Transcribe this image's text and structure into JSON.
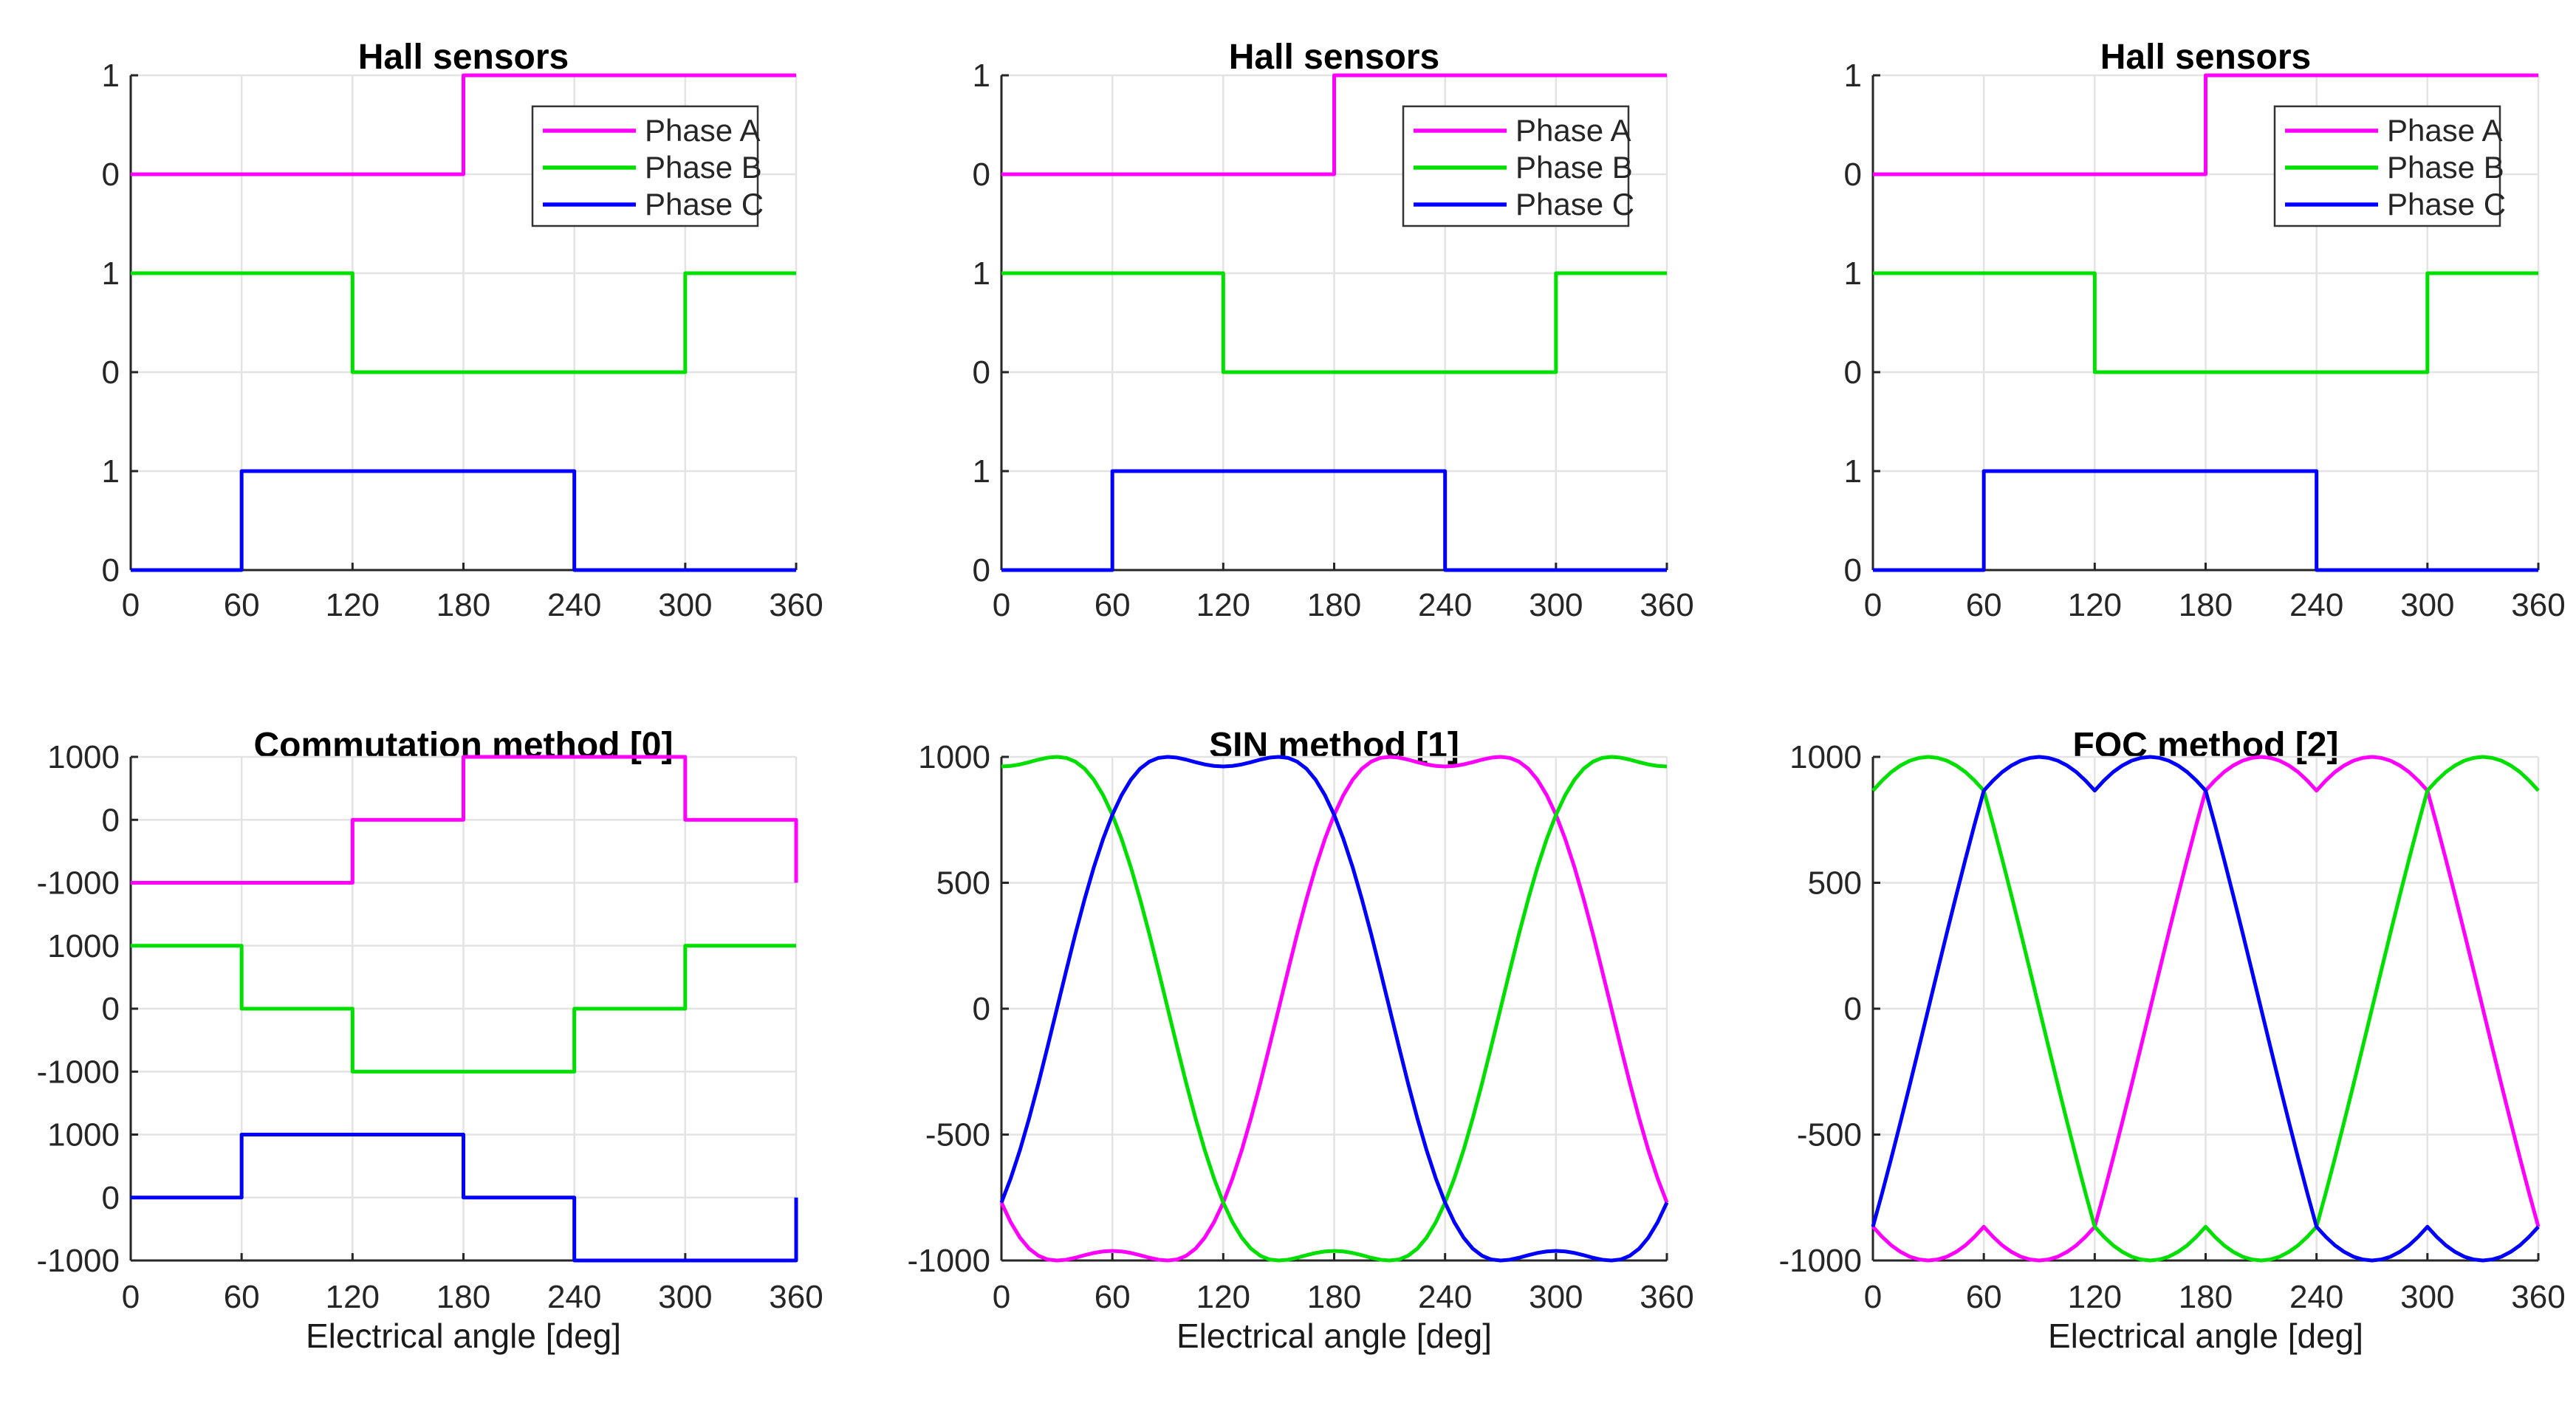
{
  "figure": {
    "background": "#FFFFFF"
  },
  "colors": {
    "phase_a": "#FF00FF",
    "phase_b": "#00DF00",
    "phase_c": "#0000FF",
    "grid": "#E3E3E3",
    "axis": "#262626",
    "tick_label": "#262626",
    "legend_border": "#333333",
    "legend_background": "#FFFFFF",
    "title": "#000000"
  },
  "x_axis": {
    "label": "Electrical angle [deg]",
    "ticks": [
      0,
      60,
      120,
      180,
      240,
      300,
      360
    ],
    "range": [
      0,
      360
    ]
  },
  "legend": {
    "items": [
      {
        "label": "Phase A",
        "color": "phase_a"
      },
      {
        "label": "Phase B",
        "color": "phase_b"
      },
      {
        "label": "Phase C",
        "color": "phase_c"
      }
    ]
  },
  "chart_data": [
    {
      "type": "step-lanes",
      "title": "Hall sensors",
      "legend": true,
      "ylim": [
        0,
        5
      ],
      "yticks": [
        {
          "u": 5,
          "label": "1"
        },
        {
          "u": 4,
          "label": "0"
        },
        {
          "u": 3,
          "label": "1"
        },
        {
          "u": 2,
          "label": "0"
        },
        {
          "u": 1,
          "label": "1"
        },
        {
          "u": 0,
          "label": "0"
        }
      ],
      "series": [
        {
          "name": "Phase A",
          "color": "phase_a",
          "base": 4,
          "scale": 1,
          "x": [
            0,
            180
          ],
          "y": [
            0,
            1
          ],
          "xend": 360
        },
        {
          "name": "Phase B",
          "color": "phase_b",
          "base": 2,
          "scale": 1,
          "x": [
            0,
            120,
            300
          ],
          "y": [
            1,
            0,
            1
          ],
          "xend": 360
        },
        {
          "name": "Phase C",
          "color": "phase_c",
          "base": 0,
          "scale": 1,
          "x": [
            0,
            60,
            240
          ],
          "y": [
            0,
            1,
            0
          ],
          "xend": 360
        }
      ]
    },
    {
      "type": "step-lanes",
      "title": "Hall sensors",
      "legend": true,
      "ylim": [
        0,
        5
      ],
      "yticks": [
        {
          "u": 5,
          "label": "1"
        },
        {
          "u": 4,
          "label": "0"
        },
        {
          "u": 3,
          "label": "1"
        },
        {
          "u": 2,
          "label": "0"
        },
        {
          "u": 1,
          "label": "1"
        },
        {
          "u": 0,
          "label": "0"
        }
      ],
      "series": [
        {
          "name": "Phase A",
          "color": "phase_a",
          "base": 4,
          "scale": 1,
          "x": [
            0,
            180
          ],
          "y": [
            0,
            1
          ],
          "xend": 360
        },
        {
          "name": "Phase B",
          "color": "phase_b",
          "base": 2,
          "scale": 1,
          "x": [
            0,
            120,
            300
          ],
          "y": [
            1,
            0,
            1
          ],
          "xend": 360
        },
        {
          "name": "Phase C",
          "color": "phase_c",
          "base": 0,
          "scale": 1,
          "x": [
            0,
            60,
            240
          ],
          "y": [
            0,
            1,
            0
          ],
          "xend": 360
        }
      ]
    },
    {
      "type": "step-lanes",
      "title": "Hall sensors",
      "legend": true,
      "ylim": [
        0,
        5
      ],
      "yticks": [
        {
          "u": 5,
          "label": "1"
        },
        {
          "u": 4,
          "label": "0"
        },
        {
          "u": 3,
          "label": "1"
        },
        {
          "u": 2,
          "label": "0"
        },
        {
          "u": 1,
          "label": "1"
        },
        {
          "u": 0,
          "label": "0"
        }
      ],
      "series": [
        {
          "name": "Phase A",
          "color": "phase_a",
          "base": 4,
          "scale": 1,
          "x": [
            0,
            180
          ],
          "y": [
            0,
            1
          ],
          "xend": 360
        },
        {
          "name": "Phase B",
          "color": "phase_b",
          "base": 2,
          "scale": 1,
          "x": [
            0,
            120,
            300
          ],
          "y": [
            1,
            0,
            1
          ],
          "xend": 360
        },
        {
          "name": "Phase C",
          "color": "phase_c",
          "base": 0,
          "scale": 1,
          "x": [
            0,
            60,
            240
          ],
          "y": [
            0,
            1,
            0
          ],
          "xend": 360
        }
      ]
    },
    {
      "type": "step-lanes",
      "title": "Commutation method [0]",
      "legend": false,
      "ylim": [
        0,
        8
      ],
      "yticks": [
        {
          "u": 8,
          "label": "1000"
        },
        {
          "u": 7,
          "label": "0"
        },
        {
          "u": 6,
          "label": "-1000"
        },
        {
          "u": 5,
          "label": "1000"
        },
        {
          "u": 4,
          "label": "0"
        },
        {
          "u": 3,
          "label": "-1000"
        },
        {
          "u": 2,
          "label": "1000"
        },
        {
          "u": 1,
          "label": "0"
        },
        {
          "u": 0,
          "label": "-1000"
        }
      ],
      "series": [
        {
          "name": "Phase A",
          "color": "phase_a",
          "base": 7,
          "scale": 0.001,
          "x": [
            0,
            120,
            180,
            300,
            360
          ],
          "y": [
            -1000,
            0,
            1000,
            0,
            -1000
          ],
          "xend": 360
        },
        {
          "name": "Phase B",
          "color": "phase_b",
          "base": 4,
          "scale": 0.001,
          "x": [
            0,
            60,
            120,
            240,
            300
          ],
          "y": [
            1000,
            0,
            -1000,
            0,
            1000
          ],
          "xend": 360
        },
        {
          "name": "Phase C",
          "color": "phase_c",
          "base": 1,
          "scale": 0.001,
          "x": [
            0,
            60,
            180,
            240,
            360
          ],
          "y": [
            0,
            1000,
            0,
            -1000,
            0
          ],
          "xend": 360
        }
      ]
    },
    {
      "type": "curves",
      "title": "SIN method [1]",
      "legend": false,
      "ylim": [
        -1000,
        1000
      ],
      "yticks": [
        {
          "v": 1000,
          "label": "1000"
        },
        {
          "v": 500,
          "label": "500"
        },
        {
          "v": 0,
          "label": "0"
        },
        {
          "v": -500,
          "label": "-500"
        },
        {
          "v": -1000,
          "label": "-1000"
        }
      ],
      "step_deg": 5,
      "waveform": [
        962,
        964,
        970,
        979,
        989,
        997,
        1000,
        996,
        981,
        953,
        909,
        848,
        770,
        674,
        562,
        435,
        297,
        150,
        0,
        -150,
        -297,
        -435,
        -562,
        -674,
        -770,
        -848,
        -909,
        -953,
        -981,
        -996,
        -1000,
        -997,
        -989,
        -979,
        -970,
        -964,
        -962,
        -964,
        -970,
        -979,
        -989,
        -997,
        -1000,
        -996,
        -981,
        -953,
        -909,
        -848,
        -770,
        -674,
        -562,
        -435,
        -297,
        -150,
        0,
        150,
        297,
        435,
        562,
        674,
        770,
        848,
        909,
        953,
        981,
        996,
        1000,
        997,
        989,
        979,
        970,
        964,
        962
      ],
      "series": [
        {
          "name": "Phase A",
          "color": "phase_a",
          "center_deg": 240
        },
        {
          "name": "Phase B",
          "color": "phase_b",
          "center_deg": 0
        },
        {
          "name": "Phase C",
          "color": "phase_c",
          "center_deg": 120
        }
      ]
    },
    {
      "type": "curves",
      "title": "FOC method [2]",
      "legend": false,
      "ylim": [
        -1000,
        1000
      ],
      "yticks": [
        {
          "v": 1000,
          "label": "1000"
        },
        {
          "v": 500,
          "label": "500"
        },
        {
          "v": 0,
          "label": "0"
        },
        {
          "v": -500,
          "label": "-500"
        },
        {
          "v": -1000,
          "label": "-1000"
        }
      ],
      "step_deg": 5,
      "waveform": [
        866,
        906,
        940,
        966,
        985,
        996,
        1000,
        996,
        985,
        966,
        940,
        906,
        866,
        732,
        592,
        448,
        301,
        151,
        0,
        -151,
        -301,
        -448,
        -592,
        -732,
        -866,
        -906,
        -940,
        -966,
        -985,
        -996,
        -1000,
        -996,
        -985,
        -966,
        -940,
        -906,
        -866,
        -906,
        -940,
        -966,
        -985,
        -996,
        -1000,
        -996,
        -985,
        -966,
        -940,
        -906,
        -866,
        -732,
        -592,
        -448,
        -301,
        -151,
        0,
        151,
        301,
        448,
        592,
        732,
        866,
        906,
        940,
        966,
        985,
        996,
        1000,
        996,
        985,
        966,
        940,
        906,
        866
      ],
      "series": [
        {
          "name": "Phase A",
          "color": "phase_a",
          "center_deg": 240
        },
        {
          "name": "Phase B",
          "color": "phase_b",
          "center_deg": 0
        },
        {
          "name": "Phase C",
          "color": "phase_c",
          "center_deg": 120
        }
      ]
    }
  ]
}
